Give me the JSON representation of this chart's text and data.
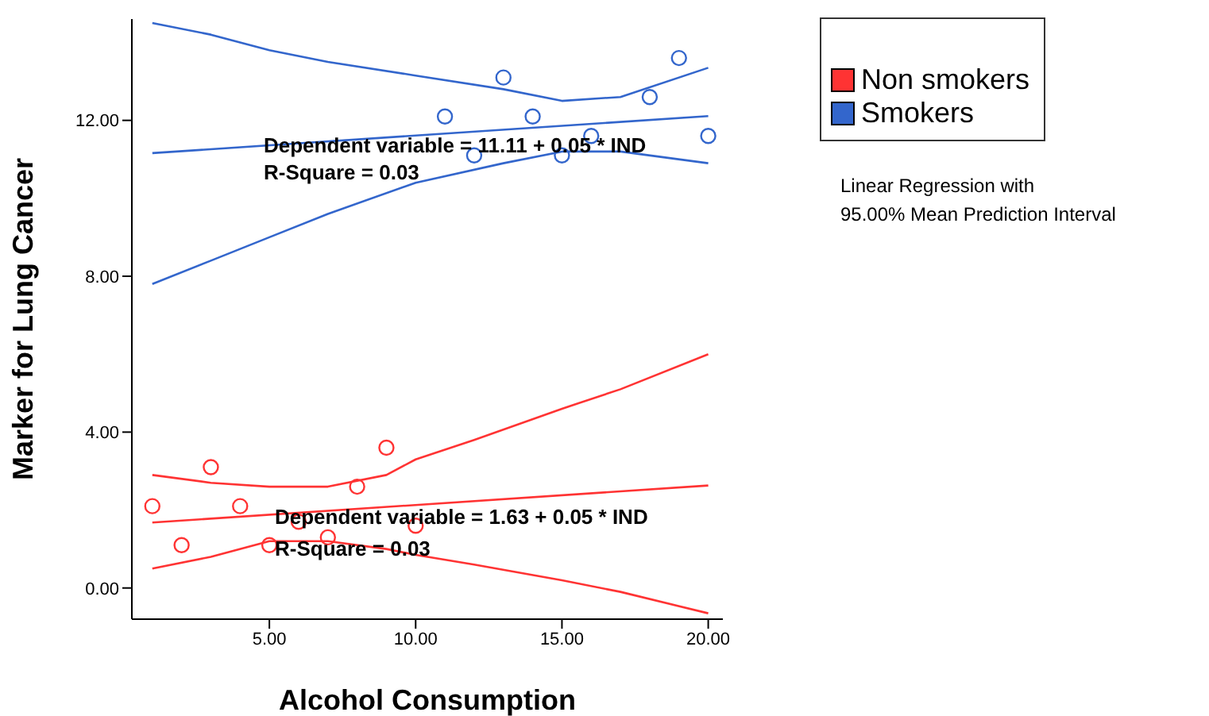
{
  "chart_data": {
    "type": "scatter",
    "xlabel": "Alcohol Consumption",
    "ylabel": "Marker for Lung Cancer",
    "xlim": [
      0.3,
      20.5
    ],
    "ylim": [
      -0.8,
      14.6
    ],
    "xticks": [
      {
        "value": 5,
        "label": "5.00"
      },
      {
        "value": 10,
        "label": "10.00"
      },
      {
        "value": 15,
        "label": "15.00"
      },
      {
        "value": 20,
        "label": "20.00"
      }
    ],
    "yticks": [
      {
        "value": 0,
        "label": "0.00"
      },
      {
        "value": 4,
        "label": "4.00"
      },
      {
        "value": 8,
        "label": "8.00"
      },
      {
        "value": 12,
        "label": "12.00"
      }
    ],
    "legend": "top right",
    "series": [
      {
        "name": "Non smokers",
        "marker": "circle",
        "color": "#ff3333",
        "x": [
          1,
          2,
          3,
          4,
          5,
          6,
          7,
          8,
          9,
          10
        ],
        "values": [
          2.1,
          1.1,
          3.1,
          2.1,
          1.1,
          1.7,
          1.3,
          2.6,
          3.6,
          1.6
        ]
      },
      {
        "name": "Smokers",
        "marker": "circle",
        "color": "#3366cc",
        "x": [
          11,
          12,
          13,
          14,
          15,
          16,
          18,
          19,
          20
        ],
        "values": [
          12.1,
          11.1,
          13.1,
          12.1,
          11.1,
          11.6,
          12.6,
          13.6,
          11.6
        ]
      },
      {
        "type": "line",
        "color": "#ff3333",
        "x": [
          1,
          20
        ],
        "values": [
          1.68,
          2.63
        ]
      },
      {
        "type": "line",
        "color": "#ff3333",
        "x": [
          1,
          3,
          5,
          7,
          9,
          10,
          12,
          15,
          17,
          20
        ],
        "values": [
          2.9,
          2.7,
          2.6,
          2.6,
          2.9,
          3.3,
          3.8,
          4.6,
          5.1,
          6.0
        ]
      },
      {
        "type": "line",
        "color": "#ff3333",
        "x": [
          1,
          3,
          5,
          7,
          9,
          10,
          12,
          15,
          17,
          20
        ],
        "values": [
          0.5,
          0.8,
          1.2,
          1.2,
          1.0,
          0.85,
          0.6,
          0.2,
          -0.1,
          -0.65
        ]
      },
      {
        "type": "line",
        "color": "#3366cc",
        "x": [
          1,
          20
        ],
        "values": [
          11.16,
          12.11
        ]
      },
      {
        "type": "line",
        "color": "#3366cc",
        "x": [
          1,
          3,
          5,
          7,
          10,
          13,
          15,
          17,
          20
        ],
        "values": [
          14.5,
          14.2,
          13.8,
          13.5,
          13.15,
          12.8,
          12.5,
          12.6,
          13.35
        ]
      },
      {
        "type": "line",
        "color": "#3366cc",
        "x": [
          1,
          3,
          5,
          7,
          10,
          13,
          15,
          17,
          20
        ],
        "values": [
          7.8,
          8.4,
          9.0,
          9.6,
          10.4,
          10.9,
          11.2,
          11.2,
          10.9
        ]
      }
    ],
    "annotations": [
      "Dependent variable = 11.11 + 0.05 * IND",
      "R-Square = 0.03",
      "Dependent variable = 1.63 + 0.05 * IND",
      "R-Square = 0.03",
      "Linear Regression with\n95.00% Mean Prediction Interval"
    ]
  }
}
